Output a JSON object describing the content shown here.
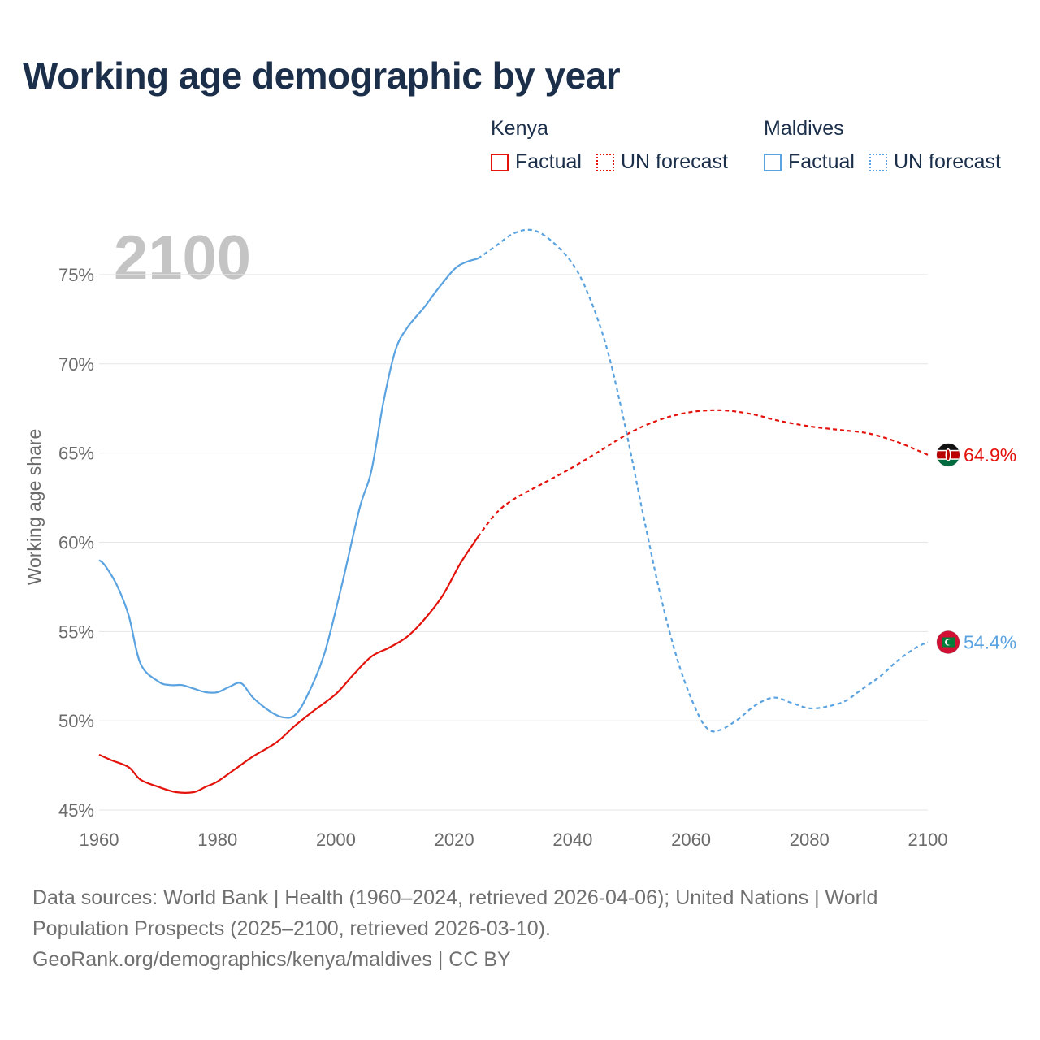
{
  "title": "Working age demographic by year",
  "legend": [
    {
      "country": "Kenya",
      "factual_label": "Factual",
      "forecast_label": "UN forecast",
      "color": "#e3120b"
    },
    {
      "country": "Maldives",
      "factual_label": "Factual",
      "forecast_label": "UN forecast",
      "color": "#5aa3e0"
    }
  ],
  "footer": {
    "line1": "Data sources: World Bank | Health (1960–2024, retrieved 2026-04-06); United Nations | World",
    "line2": "Population Prospects (2025–2100, retrieved 2026-03-10).",
    "line3": "GeoRank.org/demographics/kenya/maldives | CC BY"
  },
  "chart_data": {
    "type": "line",
    "title": "Working age demographic by year",
    "year_label": "2100",
    "xlabel": "",
    "ylabel": "Working age share",
    "xlim": [
      1960,
      2100
    ],
    "ylim": [
      44.5,
      77.5
    ],
    "x_ticks": [
      1960,
      1980,
      2000,
      2020,
      2040,
      2060,
      2080,
      2100
    ],
    "y_ticks": [
      45,
      50,
      55,
      60,
      65,
      70,
      75
    ],
    "y_tick_labels": [
      "45%",
      "50%",
      "55%",
      "60%",
      "65%",
      "70%",
      "75%"
    ],
    "grid": true,
    "legend_position": "top-right",
    "factual_end_year": 2024,
    "series": [
      {
        "name": "Kenya",
        "color": "#e3120b",
        "end_label": "64.9%",
        "x": [
          1960,
          1962,
          1965,
          1967,
          1970,
          1973,
          1976,
          1978,
          1980,
          1983,
          1986,
          1990,
          1993,
          1996,
          2000,
          2003,
          2006,
          2009,
          2012,
          2015,
          2018,
          2021,
          2024,
          2027,
          2030,
          2035,
          2040,
          2045,
          2050,
          2055,
          2060,
          2065,
          2070,
          2075,
          2080,
          2085,
          2090,
          2095,
          2100
        ],
        "y": [
          48.1,
          47.8,
          47.4,
          46.7,
          46.3,
          46.0,
          46.0,
          46.3,
          46.6,
          47.3,
          48.0,
          48.8,
          49.7,
          50.5,
          51.5,
          52.6,
          53.6,
          54.1,
          54.7,
          55.7,
          57.0,
          58.8,
          60.3,
          61.6,
          62.4,
          63.3,
          64.2,
          65.2,
          66.2,
          66.9,
          67.3,
          67.4,
          67.2,
          66.8,
          66.5,
          66.3,
          66.1,
          65.6,
          64.9
        ]
      },
      {
        "name": "Maldives",
        "color": "#5aa3e0",
        "end_label": "54.4%",
        "x": [
          1960,
          1961,
          1963,
          1965,
          1967,
          1970,
          1972,
          1974,
          1976,
          1978,
          1980,
          1982,
          1984,
          1986,
          1989,
          1991,
          1993,
          1995,
          1998,
          2001,
          2004,
          2006,
          2008,
          2010,
          2012,
          2015,
          2017,
          2020,
          2022,
          2024,
          2027,
          2030,
          2033,
          2036,
          2040,
          2043,
          2046,
          2049,
          2052,
          2055,
          2058,
          2061,
          2063,
          2065,
          2068,
          2071,
          2074,
          2077,
          2080,
          2083,
          2086,
          2089,
          2092,
          2095,
          2098,
          2100
        ],
        "y": [
          59.0,
          58.7,
          57.6,
          55.9,
          53.2,
          52.2,
          52.0,
          52.0,
          51.8,
          51.6,
          51.6,
          51.9,
          52.1,
          51.3,
          50.5,
          50.2,
          50.3,
          51.3,
          53.7,
          57.6,
          61.9,
          64.0,
          67.8,
          70.7,
          72.0,
          73.2,
          74.1,
          75.3,
          75.7,
          75.9,
          76.6,
          77.3,
          77.5,
          77.0,
          75.6,
          73.6,
          70.6,
          66.3,
          61.4,
          56.8,
          53.1,
          50.5,
          49.5,
          49.5,
          50.1,
          50.9,
          51.3,
          51.0,
          50.7,
          50.8,
          51.1,
          51.8,
          52.5,
          53.4,
          54.1,
          54.4
        ]
      }
    ]
  }
}
